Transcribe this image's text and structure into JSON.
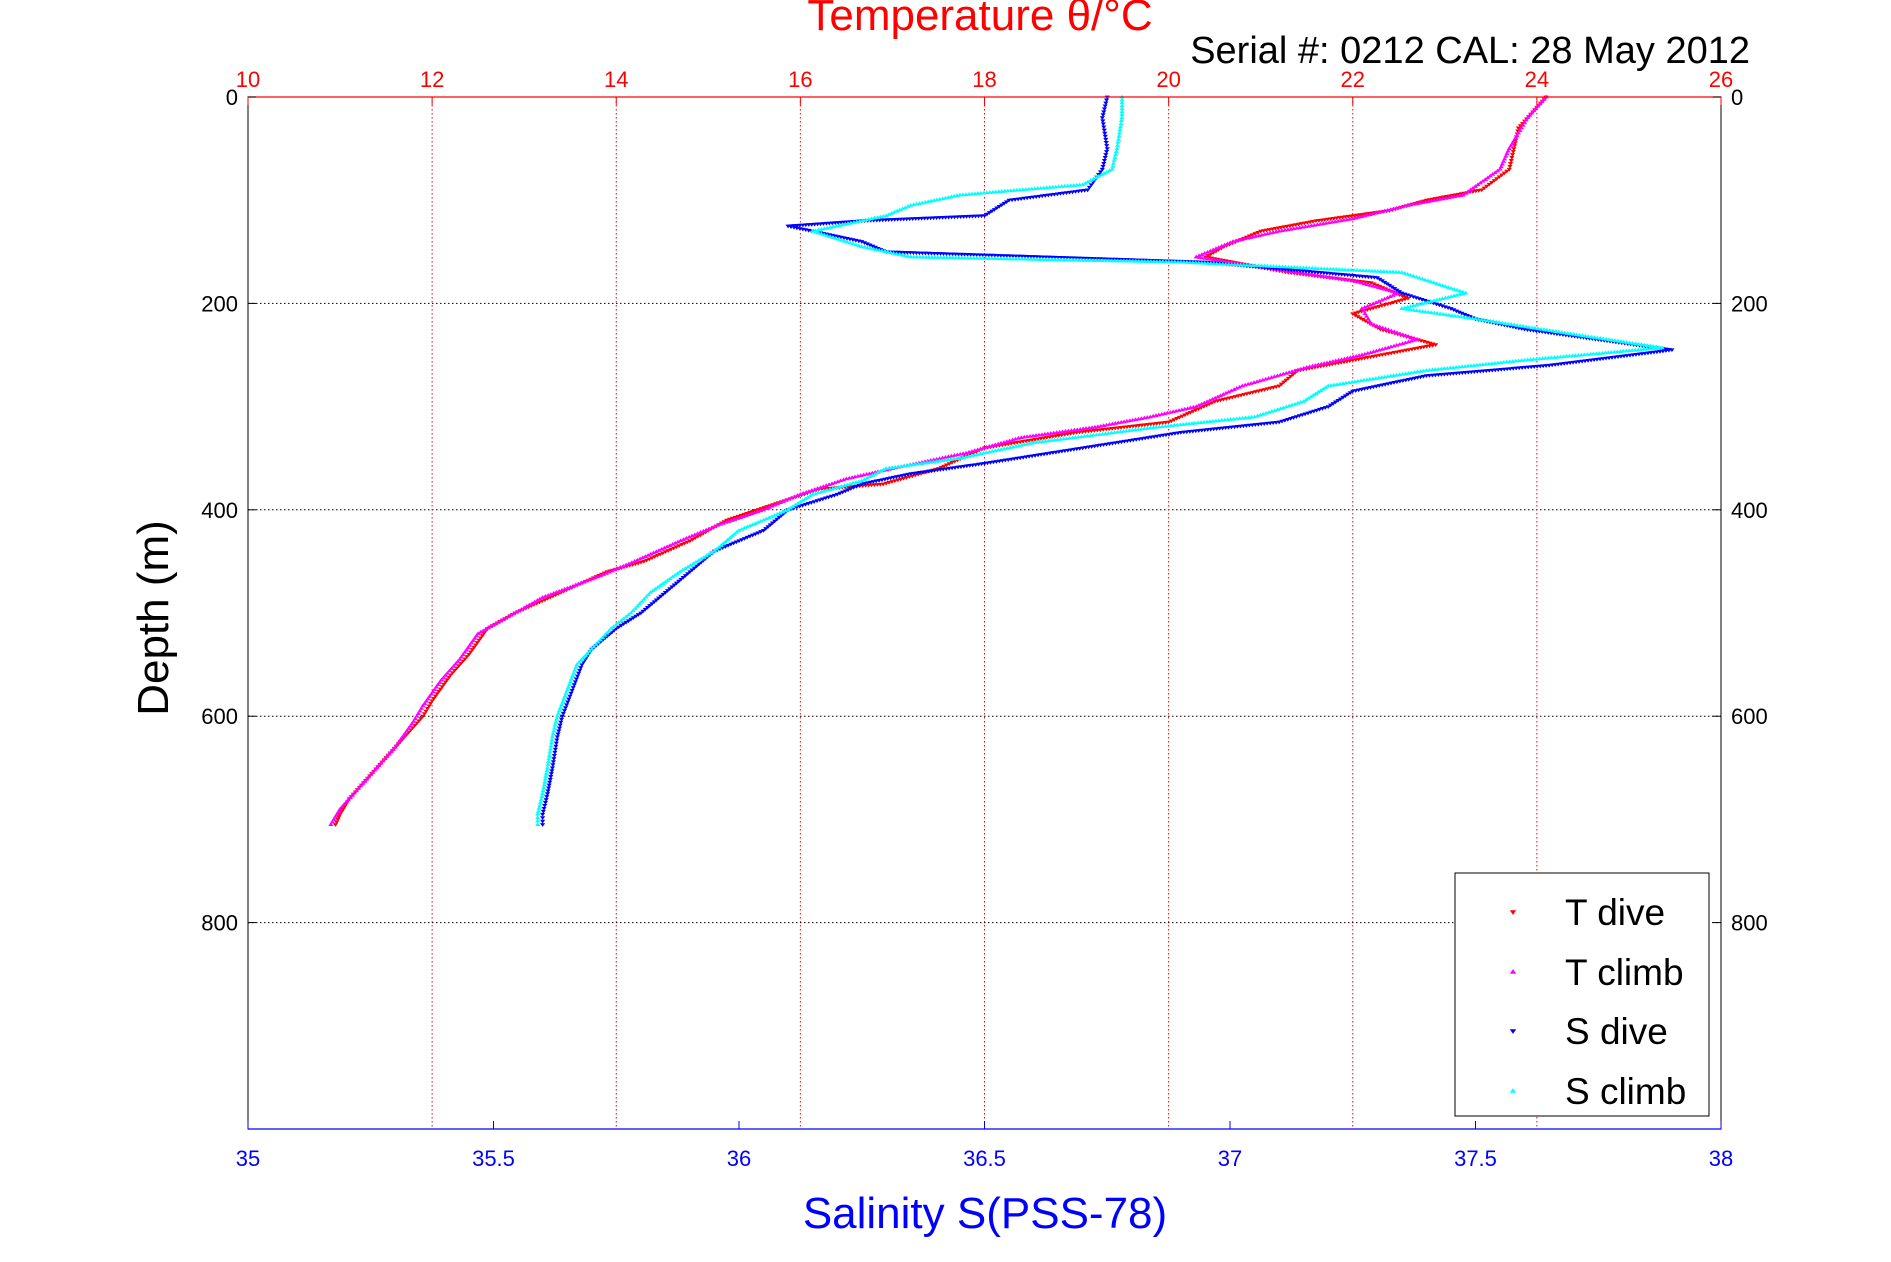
{
  "chart_data": {
    "type": "scatter",
    "title": "Temperature θ/°C",
    "subtitle": "Serial #: 0212  CAL: 28 May 2012",
    "ylabel": "Depth (m)",
    "xlabel_bottom": "Salinity S(PSS-78)",
    "xlabel_top": "Temperature θ/°C",
    "ylim": [
      0,
      1000
    ],
    "y_reversed": true,
    "y_ticks": [
      0,
      200,
      400,
      600,
      800
    ],
    "x_top_lim": [
      10,
      26
    ],
    "x_top_ticks": [
      10,
      12,
      14,
      16,
      18,
      20,
      22,
      24,
      26
    ],
    "x_bottom_lim": [
      35,
      38
    ],
    "x_bottom_ticks": [
      35,
      35.5,
      36,
      36.5,
      37,
      37.5,
      38
    ],
    "grid": true,
    "legend_position": "bottom-right",
    "colors": {
      "temperature_axis": "#ff0000",
      "salinity_axis": "#0000ff",
      "t_dive": "#ff0000",
      "t_climb": "#ff00ff",
      "s_dive": "#0000ff",
      "s_climb": "#00ffff"
    },
    "series": [
      {
        "name": "T dive",
        "axis": "top",
        "color": "#ff0000",
        "marker": "triangle-down",
        "points": [
          [
            24.1,
            0
          ],
          [
            24.0,
            10
          ],
          [
            23.8,
            30
          ],
          [
            23.7,
            70
          ],
          [
            23.4,
            90
          ],
          [
            22.8,
            100
          ],
          [
            22.4,
            110
          ],
          [
            21.6,
            120
          ],
          [
            21.0,
            130
          ],
          [
            20.6,
            145
          ],
          [
            20.4,
            155
          ],
          [
            21.3,
            170
          ],
          [
            22.2,
            180
          ],
          [
            22.6,
            195
          ],
          [
            22.0,
            210
          ],
          [
            22.3,
            225
          ],
          [
            22.9,
            240
          ],
          [
            22.0,
            255
          ],
          [
            21.4,
            265
          ],
          [
            21.2,
            280
          ],
          [
            20.5,
            295
          ],
          [
            20.0,
            315
          ],
          [
            19.0,
            325
          ],
          [
            18.0,
            340
          ],
          [
            17.5,
            360
          ],
          [
            16.9,
            375
          ],
          [
            16.2,
            380
          ],
          [
            15.7,
            395
          ],
          [
            15.2,
            410
          ],
          [
            14.8,
            430
          ],
          [
            14.3,
            450
          ],
          [
            13.9,
            460
          ],
          [
            13.4,
            480
          ],
          [
            12.9,
            500
          ],
          [
            12.6,
            515
          ],
          [
            12.4,
            540
          ],
          [
            12.2,
            560
          ],
          [
            12.0,
            585
          ],
          [
            11.9,
            600
          ],
          [
            11.7,
            620
          ],
          [
            11.5,
            640
          ],
          [
            11.3,
            660
          ],
          [
            11.1,
            680
          ],
          [
            11.0,
            695
          ],
          [
            10.95,
            705
          ]
        ]
      },
      {
        "name": "T climb",
        "axis": "top",
        "color": "#ff00ff",
        "marker": "triangle-up",
        "points": [
          [
            24.1,
            0
          ],
          [
            23.9,
            20
          ],
          [
            23.7,
            50
          ],
          [
            23.6,
            70
          ],
          [
            23.2,
            95
          ],
          [
            22.6,
            105
          ],
          [
            22.0,
            118
          ],
          [
            21.2,
            130
          ],
          [
            20.7,
            140
          ],
          [
            20.3,
            155
          ],
          [
            21.0,
            165
          ],
          [
            22.0,
            178
          ],
          [
            22.5,
            190
          ],
          [
            22.1,
            205
          ],
          [
            22.2,
            220
          ],
          [
            22.7,
            235
          ],
          [
            22.1,
            250
          ],
          [
            21.5,
            262
          ],
          [
            20.8,
            280
          ],
          [
            20.3,
            300
          ],
          [
            19.8,
            310
          ],
          [
            19.2,
            320
          ],
          [
            18.4,
            330
          ],
          [
            17.8,
            345
          ],
          [
            17.0,
            360
          ],
          [
            16.5,
            370
          ],
          [
            16.0,
            385
          ],
          [
            15.6,
            400
          ],
          [
            15.1,
            415
          ],
          [
            14.7,
            430
          ],
          [
            14.2,
            450
          ],
          [
            13.8,
            465
          ],
          [
            13.2,
            485
          ],
          [
            12.8,
            505
          ],
          [
            12.5,
            520
          ],
          [
            12.3,
            545
          ],
          [
            12.1,
            565
          ],
          [
            11.9,
            590
          ],
          [
            11.8,
            605
          ],
          [
            11.6,
            630
          ],
          [
            11.4,
            650
          ],
          [
            11.2,
            670
          ],
          [
            11.0,
            690
          ],
          [
            10.9,
            705
          ]
        ]
      },
      {
        "name": "S dive",
        "axis": "bottom",
        "color": "#0000ff",
        "marker": "triangle-down",
        "points": [
          [
            36.75,
            0
          ],
          [
            36.74,
            20
          ],
          [
            36.75,
            50
          ],
          [
            36.74,
            70
          ],
          [
            36.71,
            90
          ],
          [
            36.55,
            100
          ],
          [
            36.5,
            115
          ],
          [
            36.25,
            120
          ],
          [
            36.1,
            125
          ],
          [
            36.25,
            140
          ],
          [
            36.3,
            150
          ],
          [
            36.95,
            160
          ],
          [
            37.3,
            175
          ],
          [
            37.35,
            190
          ],
          [
            37.45,
            205
          ],
          [
            37.5,
            215
          ],
          [
            37.6,
            225
          ],
          [
            37.9,
            245
          ],
          [
            37.65,
            260
          ],
          [
            37.4,
            270
          ],
          [
            37.25,
            285
          ],
          [
            37.2,
            300
          ],
          [
            37.1,
            315
          ],
          [
            36.9,
            325
          ],
          [
            36.7,
            340
          ],
          [
            36.5,
            355
          ],
          [
            36.35,
            365
          ],
          [
            36.25,
            375
          ],
          [
            36.2,
            385
          ],
          [
            36.1,
            400
          ],
          [
            36.05,
            420
          ],
          [
            35.95,
            440
          ],
          [
            35.9,
            460
          ],
          [
            35.85,
            480
          ],
          [
            35.8,
            500
          ],
          [
            35.75,
            515
          ],
          [
            35.7,
            535
          ],
          [
            35.68,
            550
          ],
          [
            35.66,
            575
          ],
          [
            35.64,
            600
          ],
          [
            35.63,
            620
          ],
          [
            35.62,
            650
          ],
          [
            35.61,
            675
          ],
          [
            35.6,
            695
          ],
          [
            35.6,
            705
          ]
        ]
      },
      {
        "name": "S climb",
        "axis": "bottom",
        "color": "#00ffff",
        "marker": "triangle-up",
        "points": [
          [
            36.78,
            0
          ],
          [
            36.78,
            20
          ],
          [
            36.77,
            50
          ],
          [
            36.76,
            70
          ],
          [
            36.7,
            85
          ],
          [
            36.45,
            95
          ],
          [
            36.35,
            105
          ],
          [
            36.3,
            115
          ],
          [
            36.15,
            130
          ],
          [
            36.25,
            145
          ],
          [
            36.35,
            155
          ],
          [
            36.9,
            160
          ],
          [
            37.35,
            170
          ],
          [
            37.48,
            190
          ],
          [
            37.35,
            205
          ],
          [
            37.5,
            215
          ],
          [
            37.7,
            230
          ],
          [
            37.88,
            243
          ],
          [
            37.6,
            255
          ],
          [
            37.4,
            265
          ],
          [
            37.2,
            280
          ],
          [
            37.15,
            295
          ],
          [
            37.05,
            310
          ],
          [
            36.85,
            320
          ],
          [
            36.6,
            335
          ],
          [
            36.45,
            350
          ],
          [
            36.3,
            360
          ],
          [
            36.25,
            372
          ],
          [
            36.15,
            385
          ],
          [
            36.1,
            400
          ],
          [
            36.0,
            420
          ],
          [
            35.95,
            440
          ],
          [
            35.88,
            460
          ],
          [
            35.82,
            480
          ],
          [
            35.78,
            500
          ],
          [
            35.74,
            515
          ],
          [
            35.7,
            535
          ],
          [
            35.67,
            550
          ],
          [
            35.65,
            575
          ],
          [
            35.63,
            600
          ],
          [
            35.62,
            620
          ],
          [
            35.61,
            650
          ],
          [
            35.6,
            675
          ],
          [
            35.59,
            695
          ],
          [
            35.59,
            705
          ]
        ]
      }
    ]
  }
}
